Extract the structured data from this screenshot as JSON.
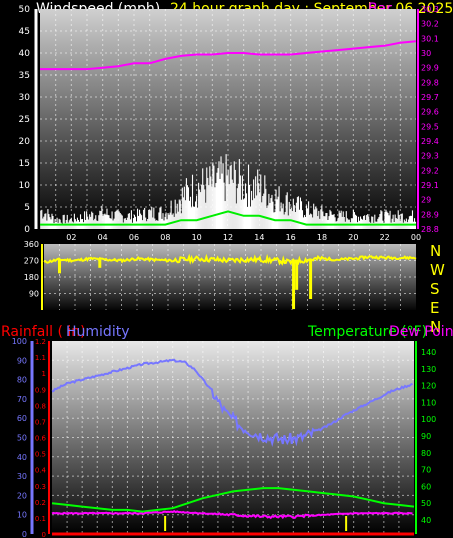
{
  "header": {
    "title_wind": "Windspeed (mph)",
    "title_period": "24 hour graph day : September 06 2025",
    "title_baro": "Bar"
  },
  "colors": {
    "wind": "#ffffff",
    "wind_avg": "#00ee00",
    "baro": "#ff00ff",
    "dir": "#ffff00",
    "rain_axis": "#ff0000",
    "humidity": "#7777ff",
    "temperature": "#00ff00",
    "dewpoint": "#ff00ff",
    "rain_line": "#ff0000",
    "yellow_marks": "#ffff00"
  },
  "compass": [
    "N",
    "W",
    "S",
    "E",
    "N"
  ],
  "bottom_header": {
    "rain": "Rainfall ( in)",
    "humidity": "Humidity",
    "temperature": "Temperature (°F)",
    "dewpoint": "Dew Point"
  },
  "chart_data": [
    {
      "type": "line",
      "panel": "wind",
      "x_ticks": [
        "02",
        "04",
        "06",
        "08",
        "10",
        "12",
        "14",
        "16",
        "18",
        "20",
        "22",
        "00"
      ],
      "left_ticks": [
        "0",
        "5",
        "10",
        "15",
        "20",
        "25",
        "30",
        "35",
        "40",
        "45",
        "50"
      ],
      "right_ticks": [
        "28.8",
        "28.9",
        "29",
        "29.1",
        "29.2",
        "29.3",
        "29.4",
        "29.5",
        "29.6",
        "29.7",
        "29.8",
        "29.9",
        "30",
        "30.1",
        "30.2",
        "30.3"
      ],
      "ylim": [
        0,
        50
      ],
      "y2lim": [
        28.8,
        30.3
      ],
      "baro_series": [
        [
          0,
          29.89
        ],
        [
          1,
          29.89
        ],
        [
          2,
          29.89
        ],
        [
          3,
          29.89
        ],
        [
          4,
          29.9
        ],
        [
          5,
          29.91
        ],
        [
          6,
          29.93
        ],
        [
          7,
          29.93
        ],
        [
          8,
          29.96
        ],
        [
          9,
          29.98
        ],
        [
          10,
          29.99
        ],
        [
          11,
          29.99
        ],
        [
          12,
          30.0
        ],
        [
          13,
          30.0
        ],
        [
          14,
          29.99
        ],
        [
          15,
          29.99
        ],
        [
          16,
          29.99
        ],
        [
          17,
          30.0
        ],
        [
          18,
          30.01
        ],
        [
          19,
          30.02
        ],
        [
          20,
          30.03
        ],
        [
          21,
          30.04
        ],
        [
          22,
          30.05
        ],
        [
          23,
          30.07
        ],
        [
          24,
          30.08
        ]
      ],
      "wind_peak_envelope": [
        [
          0,
          6
        ],
        [
          1,
          3
        ],
        [
          2,
          3
        ],
        [
          3,
          4
        ],
        [
          4,
          5
        ],
        [
          5,
          4
        ],
        [
          6,
          4
        ],
        [
          7,
          5
        ],
        [
          8,
          5
        ],
        [
          9,
          10
        ],
        [
          10,
          13
        ],
        [
          11,
          14
        ],
        [
          12,
          16
        ],
        [
          13,
          14
        ],
        [
          14,
          13
        ],
        [
          15,
          10
        ],
        [
          16,
          8
        ],
        [
          17,
          6
        ],
        [
          18,
          5
        ],
        [
          19,
          4
        ],
        [
          20,
          4
        ],
        [
          21,
          4
        ],
        [
          22,
          4
        ],
        [
          23,
          4
        ],
        [
          24,
          4
        ]
      ],
      "wind_avg_series": [
        [
          0,
          1
        ],
        [
          2,
          1
        ],
        [
          4,
          1
        ],
        [
          6,
          1
        ],
        [
          8,
          1
        ],
        [
          9,
          2
        ],
        [
          10,
          2
        ],
        [
          11,
          3
        ],
        [
          12,
          4
        ],
        [
          13,
          3
        ],
        [
          14,
          3
        ],
        [
          15,
          2
        ],
        [
          16,
          2
        ],
        [
          17,
          1
        ],
        [
          18,
          1
        ],
        [
          20,
          1
        ],
        [
          22,
          1
        ],
        [
          24,
          1
        ]
      ]
    },
    {
      "type": "line",
      "panel": "wind_direction",
      "left_ticks": [
        "360",
        "270",
        "180",
        "90"
      ],
      "ylim": [
        0,
        360
      ],
      "direction_series": [
        [
          0,
          260
        ],
        [
          1,
          275
        ],
        [
          2,
          270
        ],
        [
          3,
          280
        ],
        [
          4,
          275
        ],
        [
          5,
          270
        ],
        [
          6,
          280
        ],
        [
          7,
          275
        ],
        [
          8,
          270
        ],
        [
          9,
          275
        ],
        [
          10,
          280
        ],
        [
          11,
          275
        ],
        [
          12,
          270
        ],
        [
          13,
          275
        ],
        [
          14,
          275
        ],
        [
          15,
          270
        ],
        [
          16,
          260
        ],
        [
          17,
          275
        ],
        [
          18,
          280
        ],
        [
          19,
          275
        ],
        [
          20,
          280
        ],
        [
          21,
          290
        ],
        [
          22,
          285
        ],
        [
          23,
          285
        ],
        [
          24,
          285
        ]
      ],
      "dips": [
        [
          16.1,
          5
        ],
        [
          16.3,
          110
        ],
        [
          17.2,
          60
        ],
        [
          1.0,
          200
        ],
        [
          3.6,
          230
        ]
      ]
    },
    {
      "type": "line",
      "panel": "temperature_humidity",
      "left_ticks": [
        "0",
        "10",
        "20",
        "30",
        "40",
        "50",
        "60",
        "70",
        "80",
        "90",
        "100"
      ],
      "rain_ticks": [
        "0",
        "0.1",
        "0.2",
        "0.3",
        "0.4",
        "0.5",
        "0.6",
        "0.7",
        "0.8",
        "0.9",
        "1",
        "1.1",
        "1.2"
      ],
      "right_ticks": [
        "40",
        "50",
        "60",
        "70",
        "80",
        "90",
        "100",
        "110",
        "120",
        "130",
        "140"
      ],
      "humidity_series": [
        [
          0,
          74
        ],
        [
          1,
          78
        ],
        [
          2,
          80
        ],
        [
          3,
          82
        ],
        [
          4,
          84
        ],
        [
          5,
          86
        ],
        [
          6,
          88
        ],
        [
          7,
          89
        ],
        [
          8,
          90
        ],
        [
          8.8,
          89
        ],
        [
          9.5,
          85
        ],
        [
          10.5,
          75
        ],
        [
          11.5,
          63
        ],
        [
          12.5,
          56
        ],
        [
          13.5,
          52
        ],
        [
          14.5,
          50
        ],
        [
          15.5,
          49
        ],
        [
          16.5,
          50
        ],
        [
          17.5,
          53
        ],
        [
          18.5,
          57
        ],
        [
          19.5,
          62
        ],
        [
          20.5,
          66
        ],
        [
          21.5,
          70
        ],
        [
          22.5,
          74
        ],
        [
          24,
          78
        ]
      ],
      "temperature_series": [
        [
          0,
          50
        ],
        [
          1,
          49
        ],
        [
          2,
          48
        ],
        [
          3,
          47
        ],
        [
          4,
          46
        ],
        [
          5,
          46
        ],
        [
          6,
          45
        ],
        [
          7,
          46
        ],
        [
          8,
          47
        ],
        [
          9,
          50
        ],
        [
          10,
          53
        ],
        [
          11,
          55
        ],
        [
          12,
          57
        ],
        [
          13,
          58
        ],
        [
          14,
          59
        ],
        [
          15,
          59
        ],
        [
          16,
          58
        ],
        [
          17,
          57
        ],
        [
          18,
          56
        ],
        [
          19,
          55
        ],
        [
          20,
          54
        ],
        [
          21,
          52
        ],
        [
          22,
          50
        ],
        [
          23,
          49
        ],
        [
          24,
          48
        ]
      ],
      "dewpoint_series": [
        [
          0,
          44
        ],
        [
          2,
          44
        ],
        [
          4,
          44
        ],
        [
          6,
          44
        ],
        [
          8,
          45
        ],
        [
          10,
          44
        ],
        [
          12,
          43
        ],
        [
          14,
          42
        ],
        [
          16,
          42
        ],
        [
          18,
          43
        ],
        [
          20,
          44
        ],
        [
          22,
          44
        ],
        [
          24,
          44
        ]
      ],
      "rain_series": [
        [
          0,
          0
        ],
        [
          24,
          0
        ]
      ],
      "yellow_marks": [
        7.5,
        19.5
      ]
    }
  ]
}
